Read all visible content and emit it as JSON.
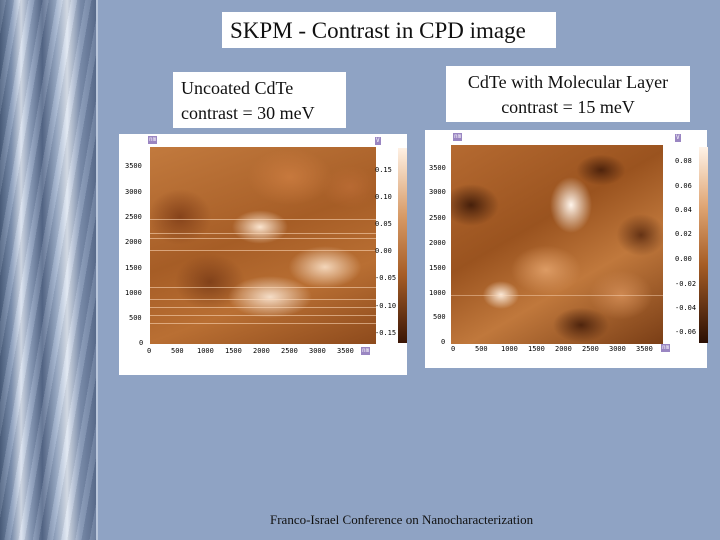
{
  "title": "SKPM - Contrast in CPD image",
  "left_label": {
    "line1": "Uncoated CdTe",
    "line2": "contrast = 30 meV"
  },
  "right_label": {
    "line1": "CdTe with Molecular Layer",
    "line2": "contrast = 15 meV"
  },
  "left_image": {
    "unit_tag": "nm",
    "y_ticks": [
      "3500",
      "3000",
      "2500",
      "2000",
      "1500",
      "1000",
      "500",
      "0"
    ],
    "x_ticks": [
      "0",
      "500",
      "1000",
      "1500",
      "2000",
      "2500",
      "3000",
      "3500"
    ],
    "x_unit": "nm",
    "scale_unit": "V",
    "scale_ticks": [
      "0.15",
      "0.10",
      "0.05",
      "0.00",
      "-0.05",
      "-0.10",
      "-0.15"
    ]
  },
  "right_image": {
    "unit_tag": "nm",
    "y_ticks": [
      "3500",
      "3000",
      "2500",
      "2000",
      "1500",
      "1000",
      "500",
      "0"
    ],
    "x_ticks": [
      "0",
      "500",
      "1000",
      "1500",
      "2000",
      "2500",
      "3000",
      "3500"
    ],
    "x_unit": "nm",
    "scale_unit": "V",
    "scale_ticks": [
      "0.08",
      "0.06",
      "0.04",
      "0.02",
      "0.00",
      "-0.02",
      "-0.04",
      "-0.06"
    ]
  },
  "footer": "Franco-Israel Conference on Nanocharacterization"
}
